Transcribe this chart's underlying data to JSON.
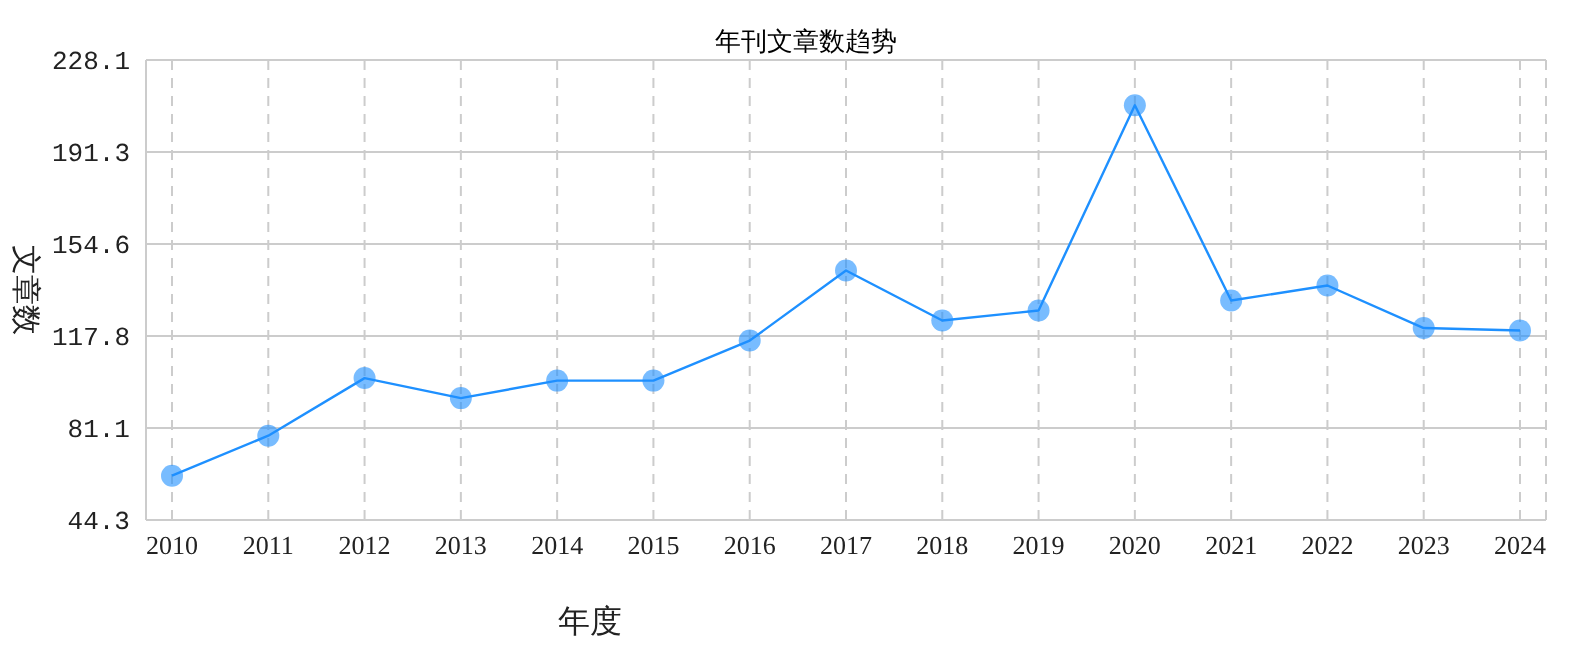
{
  "chart_data": {
    "type": "line",
    "title": "年刊文章数趋势",
    "xlabel": "年度",
    "ylabel": "文章数",
    "categories": [
      "2010",
      "2011",
      "2012",
      "2013",
      "2014",
      "2015",
      "2016",
      "2017",
      "2018",
      "2019",
      "2020",
      "2021",
      "2022",
      "2023",
      "2024"
    ],
    "series": [
      {
        "color": "#1e90ff",
        "values": [
          62,
          78,
          101,
          93,
          100,
          100,
          116,
          144,
          124,
          128,
          210,
          132,
          138,
          121,
          120
        ]
      }
    ],
    "ylim": [
      44.3,
      228.1
    ],
    "yticks": [
      44.3,
      81.1,
      117.8,
      154.6,
      191.3,
      228.1
    ],
    "grid": true,
    "marker": "circle",
    "line_style": "solid"
  }
}
